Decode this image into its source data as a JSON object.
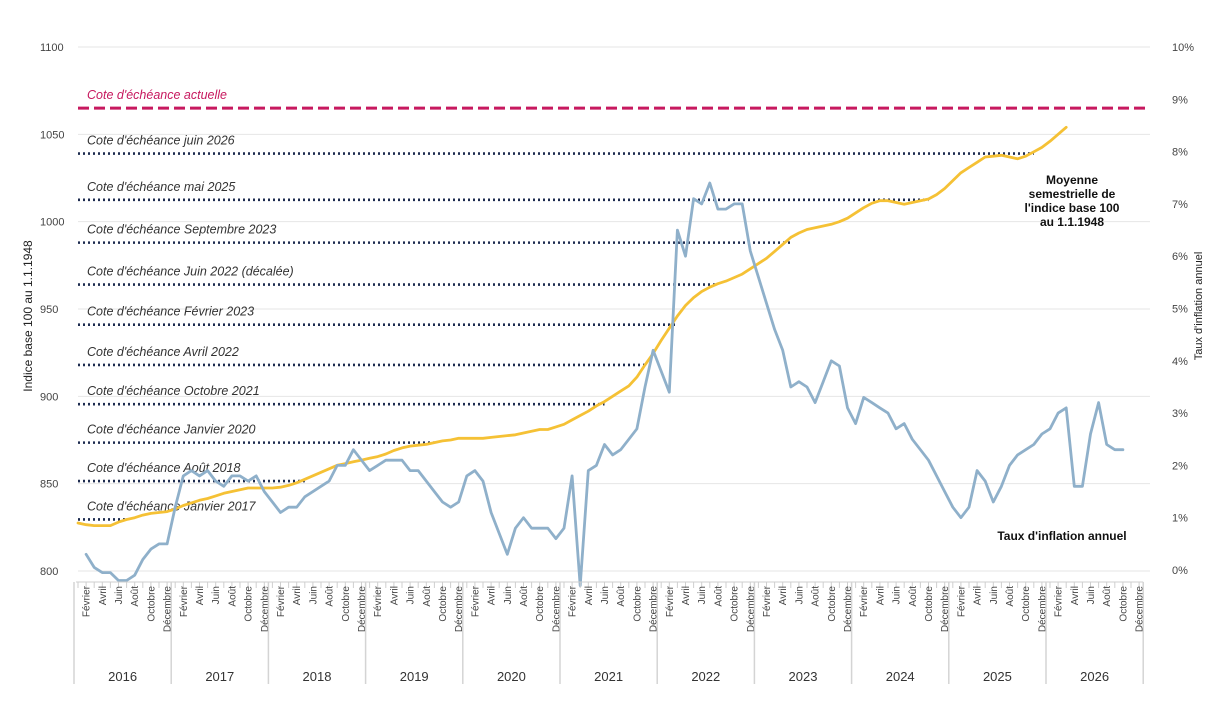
{
  "chart_data": {
    "type": "line",
    "title": "",
    "ylabel": "Indice base 100 au 1.1.1948",
    "y2label": "Taux d'inflation annuel",
    "ylim": [
      800,
      1100
    ],
    "y2lim": [
      0,
      10
    ],
    "y_ticks": [
      "800",
      "850",
      "900",
      "950",
      "1000",
      "1050",
      "1100"
    ],
    "y2_ticks": [
      "0%",
      "1%",
      "2%",
      "3%",
      "4%",
      "5%",
      "6%",
      "7%",
      "8%",
      "9%",
      "10%"
    ],
    "x_start": "2016-01",
    "month_labels": [
      "Février",
      "Avril",
      "Juin",
      "Août",
      "Octobre",
      "Décembre"
    ],
    "years": [
      "2016",
      "2017",
      "2018",
      "2019",
      "2020",
      "2021",
      "2022",
      "2023",
      "2024",
      "2025",
      "2026"
    ],
    "grid": true,
    "series": [
      {
        "name": "Moyenne semestrielle de l'indice base 100 au 1.1.1948",
        "axis": "left",
        "color": "#f5c135",
        "values": [
          827.5,
          826.5,
          826,
          826,
          826,
          828,
          829.5,
          830.5,
          832,
          833,
          833.5,
          834,
          835.5,
          837.5,
          839,
          840.5,
          841.5,
          843,
          844.5,
          845.5,
          846.5,
          847.5,
          847.5,
          847.5,
          847.5,
          848,
          849,
          850.5,
          852.5,
          854.5,
          856.5,
          858.5,
          860.5,
          861.5,
          862.5,
          863.5,
          864.5,
          865.5,
          867,
          869,
          870.5,
          871.5,
          872,
          872.5,
          873.5,
          874.5,
          875,
          876,
          876,
          876,
          876,
          876.5,
          877,
          877.5,
          878,
          879,
          880,
          881,
          881,
          882.5,
          884,
          886.5,
          889,
          891.5,
          894.5,
          897,
          900,
          903,
          906,
          911,
          918,
          924.5,
          932,
          939,
          946,
          952,
          956.5,
          960,
          962.5,
          964.5,
          966,
          968,
          970,
          973,
          976,
          979,
          983,
          987,
          991,
          993.5,
          995.5,
          996.5,
          997.5,
          998.5,
          1000,
          1002,
          1005,
          1008,
          1010.5,
          1012,
          1012,
          1011,
          1010,
          1011,
          1012,
          1013,
          1015.5,
          1019,
          1023.5,
          1028,
          1031,
          1034,
          1037,
          1037.5,
          1038,
          1037,
          1036,
          1037.5,
          1040,
          1042.5,
          1046,
          1050,
          1054
        ]
      },
      {
        "name": "Taux d'inflation annuel",
        "axis": "right",
        "color": "#8fb0ca",
        "values": [
          0.3,
          0.05,
          -0.05,
          -0.05,
          -0.2,
          -0.2,
          -0.1,
          0.2,
          0.4,
          0.5,
          0.5,
          1.2,
          1.8,
          1.9,
          1.8,
          1.9,
          1.7,
          1.6,
          1.8,
          1.8,
          1.7,
          1.8,
          1.5,
          1.3,
          1.1,
          1.2,
          1.2,
          1.4,
          1.5,
          1.6,
          1.7,
          2.0,
          2.0,
          2.3,
          2.1,
          1.9,
          2.0,
          2.1,
          2.1,
          2.1,
          1.9,
          1.9,
          1.7,
          1.5,
          1.3,
          1.2,
          1.3,
          1.8,
          1.9,
          1.7,
          1.1,
          0.7,
          0.3,
          0.8,
          1.0,
          0.8,
          0.8,
          0.8,
          0.6,
          0.8,
          1.8,
          -0.3,
          1.9,
          2.0,
          2.4,
          2.2,
          2.3,
          2.5,
          2.7,
          3.5,
          4.2,
          3.8,
          3.4,
          6.5,
          6.0,
          7.1,
          7.0,
          7.4,
          6.9,
          6.9,
          7.0,
          7.0,
          6.1,
          5.6,
          5.1,
          4.6,
          4.2,
          3.5,
          3.6,
          3.5,
          3.2,
          3.6,
          4.0,
          3.9,
          3.1,
          2.8,
          3.3,
          3.2,
          3.1,
          3.0,
          2.7,
          2.8,
          2.5,
          2.3,
          2.1,
          1.8,
          1.5,
          1.2,
          1.0,
          1.2,
          1.9,
          1.7,
          1.3,
          1.6,
          2.0,
          2.2,
          2.3,
          2.4,
          2.6,
          2.7,
          3.0,
          3.1,
          1.6,
          1.6,
          2.6,
          3.2,
          2.4,
          2.3,
          2.3
        ]
      }
    ],
    "reference_lines": [
      {
        "label": "Cote d'échéance actuelle",
        "value": 1065,
        "style": "dashed",
        "color": "#c7195f"
      },
      {
        "label": "Cote d'échéance juin 2026",
        "value": 1039,
        "style": "dotted",
        "color": "#1d2b4f"
      },
      {
        "label": "Cote d'échéance mai 2025",
        "value": 1012.5,
        "style": "dotted",
        "color": "#1d2b4f"
      },
      {
        "label": "Cote d'échéance Septembre 2023",
        "value": 988,
        "style": "dotted",
        "color": "#1d2b4f"
      },
      {
        "label": "Cote d'échéance Juin 2022 (décalée)",
        "value": 964,
        "style": "dotted",
        "color": "#1d2b4f"
      },
      {
        "label": "Cote d'échéance Février 2023",
        "value": 941,
        "style": "dotted",
        "color": "#1d2b4f"
      },
      {
        "label": "Cote d'échéance Avril 2022",
        "value": 918,
        "style": "dotted",
        "color": "#1d2b4f"
      },
      {
        "label": "Cote d'échéance Octobre 2021",
        "value": 895.5,
        "style": "dotted",
        "color": "#1d2b4f"
      },
      {
        "label": "Cote d'échéance Janvier 2020",
        "value": 873.5,
        "style": "dotted",
        "color": "#1d2b4f"
      },
      {
        "label": "Cote d'échéance Août 2018",
        "value": 851.5,
        "style": "dotted",
        "color": "#1d2b4f"
      },
      {
        "label": "Cote d'échéance Janvier 2017",
        "value": 829.5,
        "style": "dotted",
        "color": "#1d2b4f"
      }
    ],
    "annotations": [
      {
        "lines": [
          "Moyenne",
          "semestrielle de",
          "l'indice base 100",
          "au 1.1.1948"
        ],
        "series": 0
      },
      {
        "lines": [
          "Taux d'inflation annuel"
        ],
        "series": 1
      }
    ]
  }
}
